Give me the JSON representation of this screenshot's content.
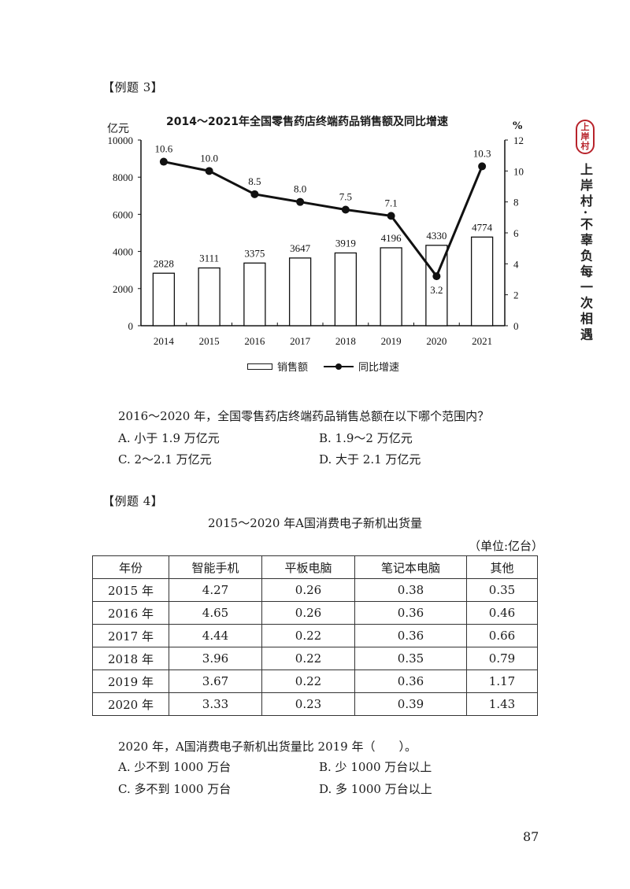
{
  "example3": {
    "label": "【例题 3】",
    "question": "2016～2020 年，全国零售药店终端药品销售总额在以下哪个范围内？",
    "options": [
      "A. 小于 1.9 万亿元",
      "B. 1.9～2 万亿元",
      "C. 2～2.1 万亿元",
      "D. 大于 2.1 万亿元"
    ]
  },
  "chart_data": {
    "type": "bar",
    "title": "2014～2021年全国零售药店终端药品销售额及同比增速",
    "categories": [
      "2014",
      "2015",
      "2016",
      "2017",
      "2018",
      "2019",
      "2020",
      "2021"
    ],
    "series": [
      {
        "name": "销售额",
        "type": "bar",
        "axis": "left",
        "values": [
          2828,
          3111,
          3375,
          3647,
          3919,
          4196,
          4330,
          4774
        ]
      },
      {
        "name": "同比增速",
        "type": "line",
        "axis": "right",
        "values": [
          10.6,
          10.0,
          8.5,
          8.0,
          7.5,
          7.1,
          3.2,
          10.3
        ]
      }
    ],
    "value_labels_bar": [
      "2828",
      "3111",
      "3375",
      "3647",
      "3919",
      "4196",
      "4330",
      "4774"
    ],
    "value_labels_line": [
      "10.6",
      "10.0",
      "8.5",
      "8.0",
      "7.5",
      "7.1",
      "3.2",
      "10.3"
    ],
    "ylabel_left": "亿元",
    "ylabel_right": "%",
    "ylim_left": [
      0,
      10000
    ],
    "yticks_left": [
      "0",
      "2000",
      "4000",
      "6000",
      "8000",
      "10000"
    ],
    "ylim_right": [
      0,
      12
    ],
    "yticks_right": [
      "0",
      "2",
      "4",
      "6",
      "8",
      "10",
      "12"
    ],
    "grid": false,
    "legend": [
      "销售额",
      "同比增速"
    ],
    "legend_position": "bottom"
  },
  "example4": {
    "label": "【例题 4】",
    "table_title": "2015～2020 年A国消费电子新机出货量",
    "unit": "（单位:亿台）",
    "columns": [
      "年份",
      "智能手机",
      "平板电脑",
      "笔记本电脑",
      "其他"
    ],
    "rows": [
      [
        "2015 年",
        "4.27",
        "0.26",
        "0.38",
        "0.35"
      ],
      [
        "2016 年",
        "4.65",
        "0.26",
        "0.36",
        "0.46"
      ],
      [
        "2017 年",
        "4.44",
        "0.22",
        "0.36",
        "0.66"
      ],
      [
        "2018 年",
        "3.96",
        "0.22",
        "0.35",
        "0.79"
      ],
      [
        "2019 年",
        "3.67",
        "0.22",
        "0.36",
        "1.17"
      ],
      [
        "2020 年",
        "3.33",
        "0.23",
        "0.39",
        "1.43"
      ]
    ],
    "question": "2020 年，A国消费电子新机出货量比 2019 年（　　）。",
    "options": [
      "A. 少不到 1000 万台",
      "B. 少 1000 万台以上",
      "C. 多不到 1000 万台",
      "D. 多 1000 万台以上"
    ]
  },
  "side": {
    "seal_chars": [
      "上",
      "岸",
      "村"
    ],
    "slogan": "上岸村·不辜负每一次相遇"
  },
  "page_number": "87"
}
